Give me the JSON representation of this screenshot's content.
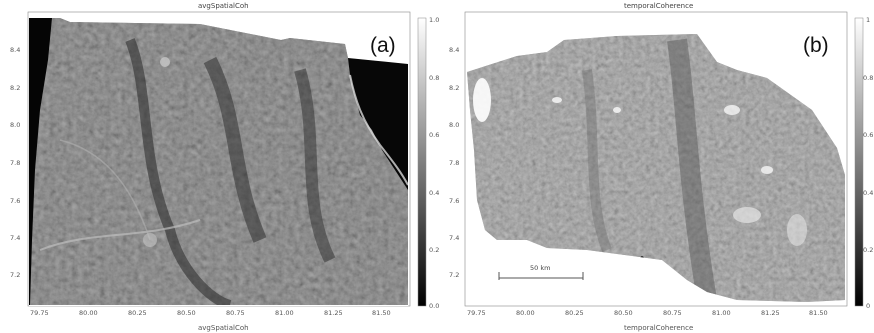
{
  "panel_a": {
    "title": "avgSpatialCoh",
    "label": "(a)",
    "bottom_title": "avgSpatialCoh",
    "y_ticks": [
      "8.4",
      "8.2",
      "8.0",
      "7.8",
      "7.6",
      "7.4",
      "7.2"
    ],
    "x_ticks": [
      "79.75",
      "80.00",
      "80.25",
      "80.50",
      "80.75",
      "81.00",
      "81.25",
      "81.50"
    ],
    "colorbar_ticks": [
      "1.0",
      "0.8",
      "0.6",
      "0.4",
      "0.2",
      "0.0"
    ]
  },
  "panel_b": {
    "title": "temporalCoherence",
    "label": "(b)",
    "bottom_title": "temporalCoherence",
    "y_ticks": [
      "8.4",
      "8.2",
      "8.0",
      "7.8",
      "7.6",
      "7.4",
      "7.2"
    ],
    "x_ticks": [
      "79.75",
      "80.00",
      "80.25",
      "80.50",
      "80.75",
      "81.00",
      "81.25",
      "81.50"
    ],
    "colorbar_ticks": [
      "1",
      "0.8",
      "0.6",
      "0.4",
      "0.2",
      "0"
    ],
    "scale_bar_label": "50 km"
  }
}
